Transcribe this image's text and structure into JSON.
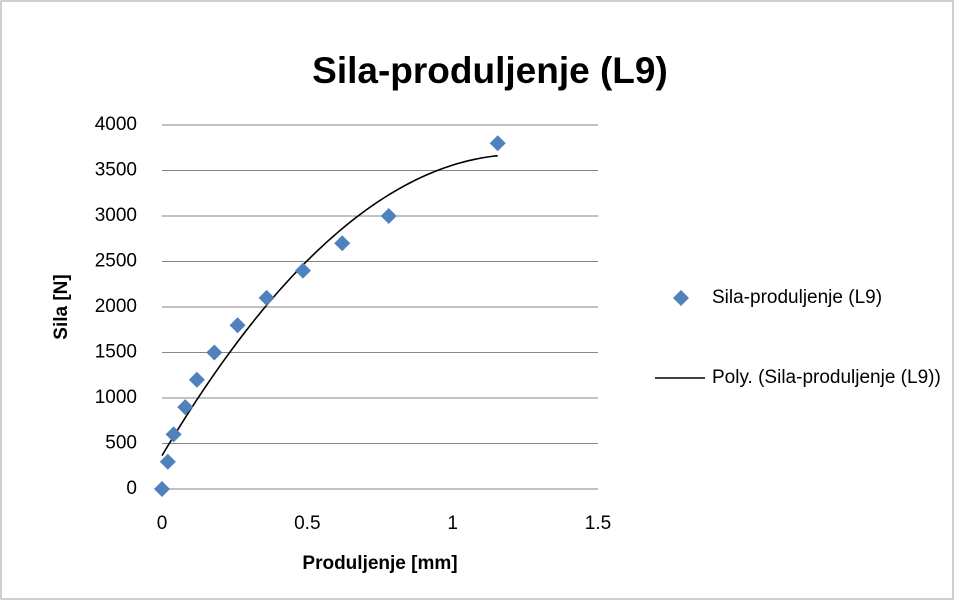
{
  "chart_data": {
    "type": "scatter",
    "title": "Sila-produljenje (L9)",
    "xlabel": "Produljenje [mm]",
    "ylabel": "Sila [N]",
    "series": [
      {
        "name": "Sila-produljenje (L9)",
        "color": "#4f81bd",
        "x": [
          0,
          0.02,
          0.04,
          0.08,
          0.12,
          0.18,
          0.26,
          0.36,
          0.485,
          0.62,
          0.78,
          1.155
        ],
        "values": [
          0,
          300,
          600,
          900,
          1200,
          1500,
          1800,
          2100,
          2400,
          2700,
          3000,
          3800
        ]
      }
    ],
    "trendline": {
      "name": "Poly. (Sila-produljenje (L9))",
      "kind": "polynomial",
      "order": 2,
      "color": "#000000"
    },
    "xlim": [
      0,
      1.5
    ],
    "xticks": [
      0,
      0.5,
      1,
      1.5
    ],
    "ylim": [
      0,
      4000
    ],
    "yticks": [
      0,
      500,
      1000,
      1500,
      2000,
      2500,
      3000,
      3500,
      4000
    ],
    "grid": true,
    "legend": "right"
  }
}
